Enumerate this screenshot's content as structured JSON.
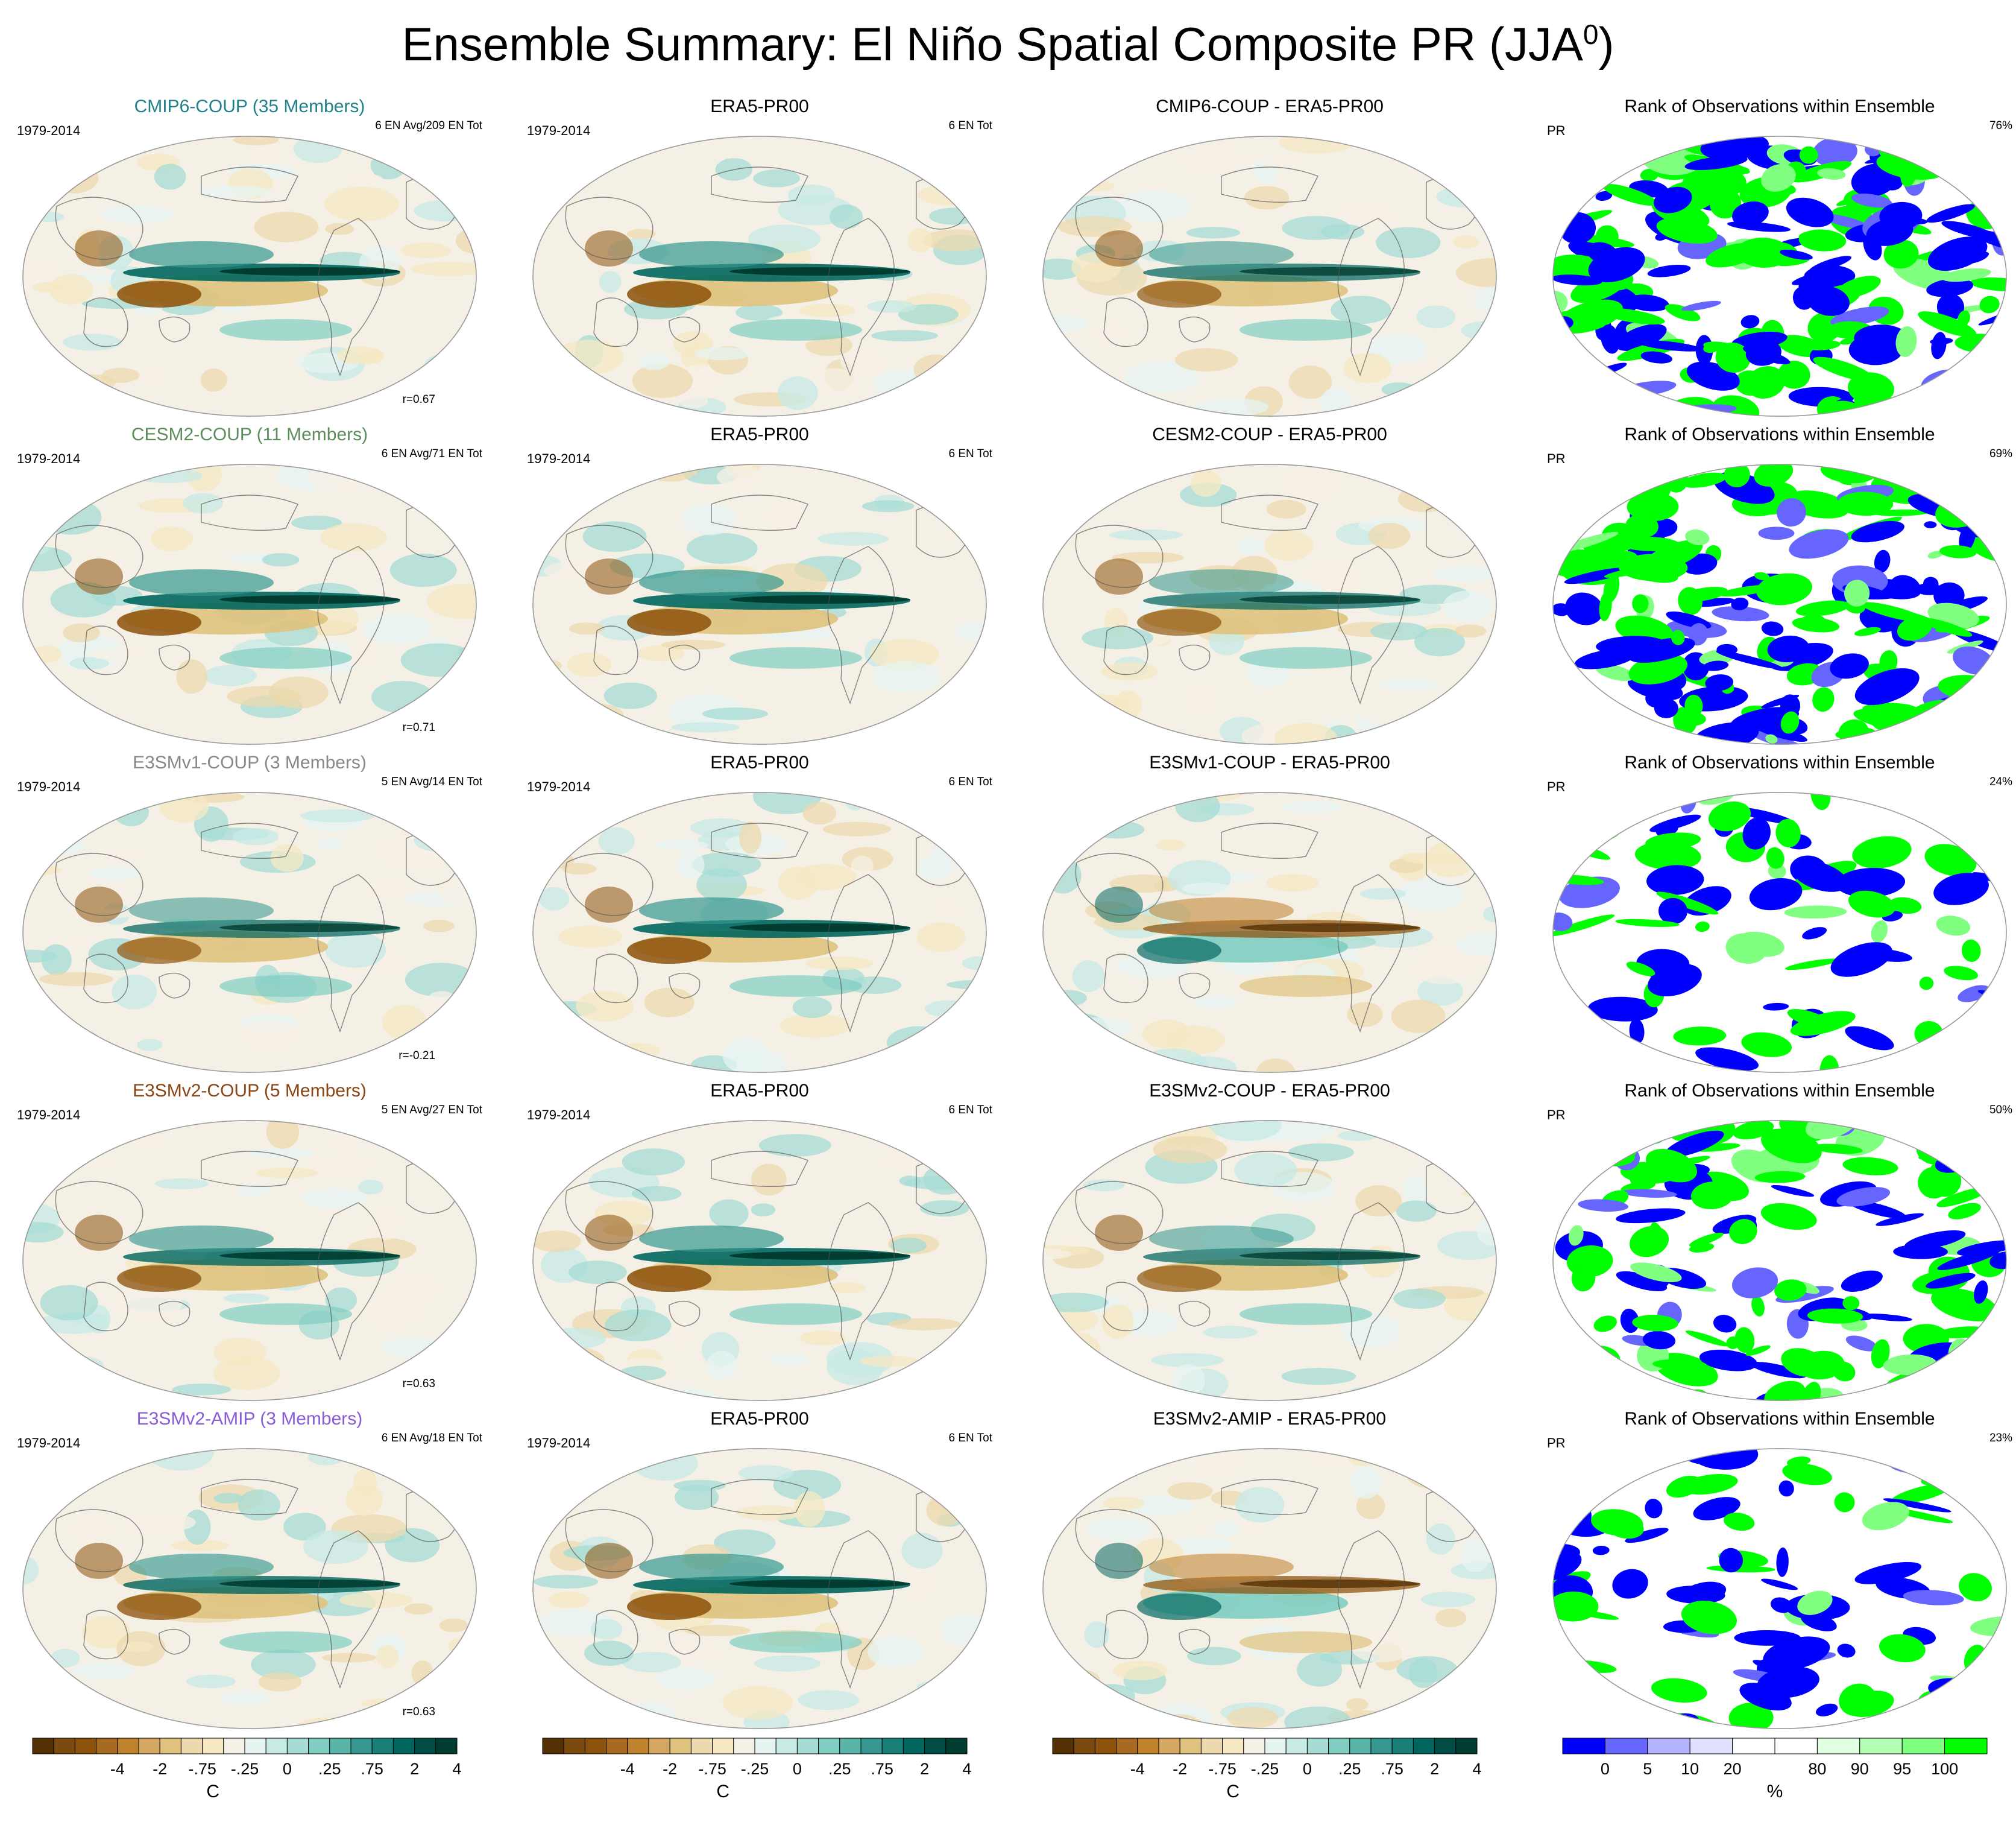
{
  "figure": {
    "title": "Ensemble Summary: El Niño Spatial Composite PR (JJA",
    "title_sup": "0",
    "title_close": ")"
  },
  "colors": {
    "div_scale": [
      "#543005",
      "#7a4a0e",
      "#8c510a",
      "#a66a22",
      "#bf812d",
      "#d4a862",
      "#dfc27d",
      "#ecd9ae",
      "#f6e8c3",
      "#f5f0e6",
      "#e6f4f1",
      "#c7eae5",
      "#a6dcd4",
      "#80cdc1",
      "#5ab4a8",
      "#35978f",
      "#1a7f77",
      "#01665e",
      "#014c44",
      "#003c30"
    ],
    "rank_scale": [
      "#0000ff",
      "#6666ff",
      "#b3b3ff",
      "#e0e0ff",
      "#ffffff",
      "#ffffff",
      "#e0ffe0",
      "#b3ffb3",
      "#80ff80",
      "#00ff00"
    ],
    "model_cmip6": "#21818a",
    "model_cesm2": "#5d8c5d",
    "model_e3smv1": "#888888",
    "model_e3smv2": "#8b4513",
    "model_amip": "#8a5cd6"
  },
  "rows": [
    {
      "model": {
        "title": "CMIP6-COUP (35 Members)",
        "period": "1979-2014",
        "count": "6 EN Avg/209 EN Tot",
        "corr": "r=0.67"
      },
      "obs": {
        "title": "ERA5-PR00",
        "period": "1979-2014",
        "count": "6 EN Tot"
      },
      "diff": {
        "title": "CMIP6-COUP - ERA5-PR00"
      },
      "rank": {
        "title": "Rank of Observations within Ensemble",
        "var": "PR",
        "pct": "76%"
      }
    },
    {
      "model": {
        "title": "CESM2-COUP (11 Members)",
        "period": "1979-2014",
        "count": "6 EN Avg/71 EN Tot",
        "corr": "r=0.71"
      },
      "obs": {
        "title": "ERA5-PR00",
        "period": "1979-2014",
        "count": "6 EN Tot"
      },
      "diff": {
        "title": "CESM2-COUP - ERA5-PR00"
      },
      "rank": {
        "title": "Rank of Observations within Ensemble",
        "var": "PR",
        "pct": "69%"
      }
    },
    {
      "model": {
        "title": "E3SMv1-COUP (3 Members)",
        "period": "1979-2014",
        "count": "5 EN Avg/14 EN Tot",
        "corr": "r=-0.21"
      },
      "obs": {
        "title": "ERA5-PR00",
        "period": "1979-2014",
        "count": "6 EN Tot"
      },
      "diff": {
        "title": "E3SMv1-COUP - ERA5-PR00"
      },
      "rank": {
        "title": "Rank of Observations within Ensemble",
        "var": "PR",
        "pct": "24%"
      }
    },
    {
      "model": {
        "title": "E3SMv2-COUP (5 Members)",
        "period": "1979-2014",
        "count": "5 EN Avg/27 EN Tot",
        "corr": "r=0.63"
      },
      "obs": {
        "title": "ERA5-PR00",
        "period": "1979-2014",
        "count": "6 EN Tot"
      },
      "diff": {
        "title": "E3SMv2-COUP - ERA5-PR00"
      },
      "rank": {
        "title": "Rank of Observations within Ensemble",
        "var": "PR",
        "pct": "50%"
      }
    },
    {
      "model": {
        "title": "E3SMv2-AMIP (3 Members)",
        "period": "1979-2014",
        "count": "6 EN Avg/18 EN Tot",
        "corr": "r=0.63"
      },
      "obs": {
        "title": "ERA5-PR00",
        "period": "1979-2014",
        "count": "6 EN Tot"
      },
      "diff": {
        "title": "E3SMv2-AMIP - ERA5-PR00"
      },
      "rank": {
        "title": "Rank of Observations within Ensemble",
        "var": "PR",
        "pct": "23%"
      }
    }
  ],
  "colorbars": {
    "div_labels": [
      "-4",
      "-2",
      "-.75",
      "-.25",
      "0",
      ".25",
      ".75",
      "2",
      "4"
    ],
    "div_unit": "C",
    "rank_labels": [
      "0",
      "5",
      "10",
      "20",
      "80",
      "90",
      "95",
      "100"
    ],
    "rank_unit": "%"
  },
  "chart_data": {
    "type": "heatmap",
    "title": "Ensemble Summary: El Niño Spatial Composite PR (JJA0)",
    "projection": "Robinson (Pacific-centered)",
    "panels_per_row": [
      "Model composite",
      "ERA5-PR00 observation",
      "Model - ERA5-PR00 difference",
      "Rank of Observations within Ensemble"
    ],
    "models": [
      "CMIP6-COUP",
      "CESM2-COUP",
      "E3SMv1-COUP",
      "E3SMv2-COUP",
      "E3SMv2-AMIP"
    ],
    "pattern_correlation": [
      0.67,
      0.71,
      -0.21,
      0.63,
      0.63
    ],
    "rank_percent": [
      76,
      69,
      24,
      50,
      23
    ],
    "div_levels": [
      -4,
      -2,
      -0.75,
      -0.25,
      0,
      0.25,
      0.75,
      2,
      4
    ],
    "rank_levels": [
      0,
      5,
      10,
      20,
      80,
      90,
      95,
      100
    ],
    "unit_div": "C",
    "unit_rank": "%"
  }
}
